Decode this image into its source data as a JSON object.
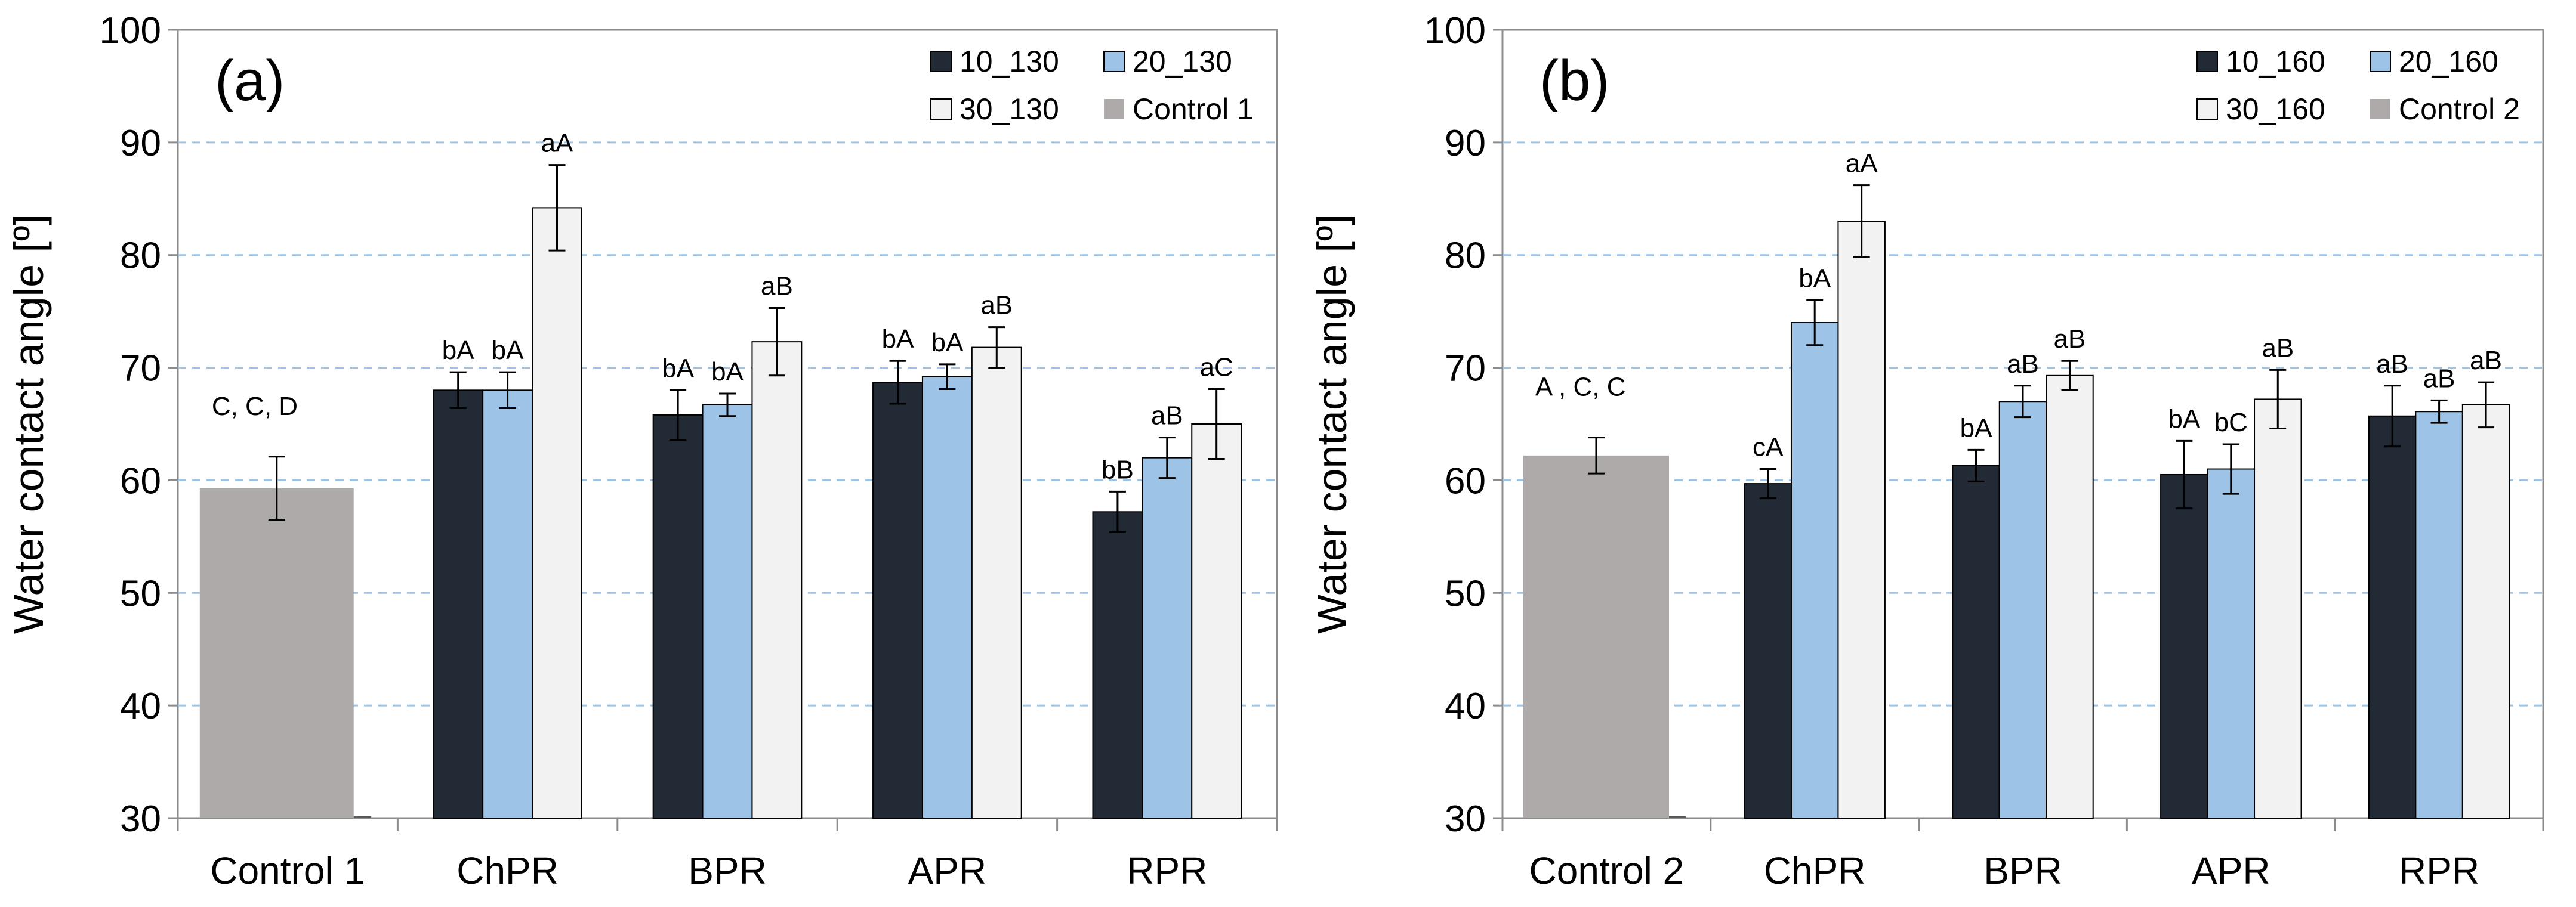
{
  "chart_data": [
    {
      "type": "bar",
      "panel_label": "(a)",
      "ylabel": "Water contact angle [º]",
      "xlabel": "",
      "ylim": [
        30,
        100
      ],
      "yticks": [
        30,
        40,
        50,
        60,
        70,
        80,
        90,
        100
      ],
      "grid": "horizontal dashed",
      "legend_position": "top-right",
      "categories": [
        "Control 1",
        "ChPR",
        "BPR",
        "APR",
        "RPR"
      ],
      "control": {
        "name": "Control 1",
        "value": 59.3,
        "error": 2.8,
        "label": "C,   C,    D",
        "color": "#aeaaaa"
      },
      "series": [
        {
          "name": "10_130",
          "color": "#222a35",
          "values": [
            null,
            68.0,
            65.8,
            68.7,
            57.2
          ],
          "errors": [
            null,
            1.6,
            2.2,
            1.9,
            1.8
          ],
          "labels": [
            "",
            "bA",
            "bA",
            "bA",
            "bB"
          ]
        },
        {
          "name": "20_130",
          "color": "#9dc3e6",
          "values": [
            null,
            68.0,
            66.7,
            69.2,
            62.0
          ],
          "errors": [
            null,
            1.6,
            1.0,
            1.1,
            1.8
          ],
          "labels": [
            "",
            "bA",
            "bA",
            "bA",
            "aB"
          ]
        },
        {
          "name": "30_130",
          "color": "#f2f2f2",
          "values": [
            null,
            84.2,
            72.3,
            71.8,
            65.0
          ],
          "errors": [
            null,
            3.8,
            3.0,
            1.8,
            3.1
          ],
          "labels": [
            "",
            "aA",
            "aB",
            "aB",
            "aC"
          ]
        }
      ],
      "legend": [
        "10_130",
        "20_130",
        "30_130",
        "Control 1"
      ]
    },
    {
      "type": "bar",
      "panel_label": "(b)",
      "ylabel": "Water contact angle [º]",
      "xlabel": "",
      "ylim": [
        30,
        100
      ],
      "yticks": [
        30,
        40,
        50,
        60,
        70,
        80,
        90,
        100
      ],
      "grid": "horizontal dashed",
      "legend_position": "top-right",
      "categories": [
        "Control 2",
        "ChPR",
        "BPR",
        "APR",
        "RPR"
      ],
      "control": {
        "name": "Control 2",
        "value": 62.2,
        "error": 1.6,
        "label": "A ,   C,     C",
        "color": "#aeaaaa"
      },
      "series": [
        {
          "name": "10_160",
          "color": "#222a35",
          "values": [
            null,
            59.7,
            61.3,
            60.5,
            65.7
          ],
          "errors": [
            null,
            1.3,
            1.4,
            3.0,
            2.7
          ],
          "labels": [
            "",
            "cA",
            "bA",
            "bA",
            "aB"
          ]
        },
        {
          "name": "20_160",
          "color": "#9dc3e6",
          "values": [
            null,
            74.0,
            67.0,
            61.0,
            66.1
          ],
          "errors": [
            null,
            2.0,
            1.4,
            2.2,
            1.0
          ],
          "labels": [
            "",
            "bA",
            "aB",
            "bC",
            "aB"
          ]
        },
        {
          "name": "30_160",
          "color": "#f2f2f2",
          "values": [
            null,
            83.0,
            69.3,
            67.2,
            66.7
          ],
          "errors": [
            null,
            3.2,
            1.3,
            2.6,
            2.0
          ],
          "labels": [
            "",
            "aA",
            "aB",
            "aB",
            "aB"
          ]
        }
      ],
      "legend": [
        "10_160",
        "20_160",
        "30_160",
        "Control 2"
      ]
    }
  ]
}
